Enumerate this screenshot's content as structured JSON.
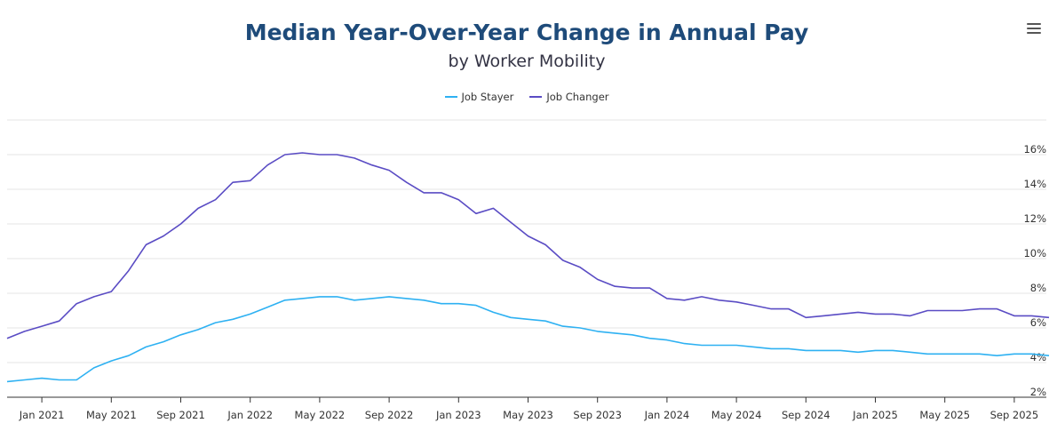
{
  "chart_data": {
    "type": "line",
    "title": "Median Year-Over-Year Change in Annual Pay",
    "subtitle": "by Worker Mobility",
    "xlabel": "",
    "ylabel": "",
    "ylim": [
      2,
      18
    ],
    "y_ticks": [
      "2%",
      "4%",
      "6%",
      "8%",
      "10%",
      "12%",
      "14%",
      "16%"
    ],
    "x_ticks": [
      "Jan 2021",
      "May 2021",
      "Sep 2021",
      "Jan 2022",
      "May 2022",
      "Sep 2022",
      "Jan 2023",
      "May 2023",
      "Sep 2023",
      "Jan 2024",
      "May 2024",
      "Sep 2024",
      "Jan 2025",
      "May 2025",
      "Sep 2025"
    ],
    "legend_position": "top-center",
    "grid": true,
    "x": [
      "2020-11",
      "2020-12",
      "2021-01",
      "2021-02",
      "2021-03",
      "2021-04",
      "2021-05",
      "2021-06",
      "2021-07",
      "2021-08",
      "2021-09",
      "2021-10",
      "2021-11",
      "2021-12",
      "2022-01",
      "2022-02",
      "2022-03",
      "2022-04",
      "2022-05",
      "2022-06",
      "2022-07",
      "2022-08",
      "2022-09",
      "2022-10",
      "2022-11",
      "2022-12",
      "2023-01",
      "2023-02",
      "2023-03",
      "2023-04",
      "2023-05",
      "2023-06",
      "2023-07",
      "2023-08",
      "2023-09",
      "2023-10",
      "2023-11",
      "2023-12",
      "2024-01",
      "2024-02",
      "2024-03",
      "2024-04",
      "2024-05",
      "2024-06",
      "2024-07",
      "2024-08",
      "2024-09",
      "2024-10",
      "2024-11",
      "2024-12",
      "2025-01",
      "2025-02",
      "2025-03",
      "2025-04",
      "2025-05",
      "2025-06",
      "2025-07",
      "2025-08",
      "2025-09",
      "2025-10",
      "2025-11"
    ],
    "series": [
      {
        "name": "Job Stayer",
        "color": "#2eb1f2",
        "values": [
          2.9,
          3.0,
          3.1,
          3.0,
          3.0,
          3.7,
          4.1,
          4.4,
          4.9,
          5.2,
          5.6,
          5.9,
          6.3,
          6.5,
          6.8,
          7.2,
          7.6,
          7.7,
          7.8,
          7.8,
          7.6,
          7.7,
          7.8,
          7.7,
          7.6,
          7.4,
          7.4,
          7.3,
          6.9,
          6.6,
          6.5,
          6.4,
          6.1,
          6.0,
          5.8,
          5.7,
          5.6,
          5.4,
          5.3,
          5.1,
          5.0,
          5.0,
          5.0,
          4.9,
          4.8,
          4.8,
          4.7,
          4.7,
          4.7,
          4.6,
          4.7,
          4.7,
          4.6,
          4.5,
          4.5,
          4.5,
          4.5,
          4.4,
          4.5,
          4.5,
          4.4
        ]
      },
      {
        "name": "Job Changer",
        "color": "#5a4cc4",
        "values": [
          5.4,
          5.8,
          6.1,
          6.4,
          7.4,
          7.8,
          8.1,
          9.3,
          10.8,
          11.3,
          12.0,
          12.9,
          13.4,
          14.4,
          14.5,
          15.4,
          16.0,
          16.1,
          16.0,
          16.0,
          15.8,
          15.4,
          15.1,
          14.4,
          13.8,
          13.8,
          13.4,
          12.6,
          12.9,
          12.1,
          11.3,
          10.8,
          9.9,
          9.5,
          8.8,
          8.4,
          8.3,
          8.3,
          7.7,
          7.6,
          7.8,
          7.6,
          7.5,
          7.3,
          7.1,
          7.1,
          6.6,
          6.7,
          6.8,
          6.9,
          6.8,
          6.8,
          6.7,
          7.0,
          7.0,
          7.0,
          7.1,
          7.1,
          6.7,
          6.7,
          6.6
        ]
      }
    ]
  },
  "menu_label": "Chart context menu",
  "menu_icon": "hamburger-menu-icon"
}
